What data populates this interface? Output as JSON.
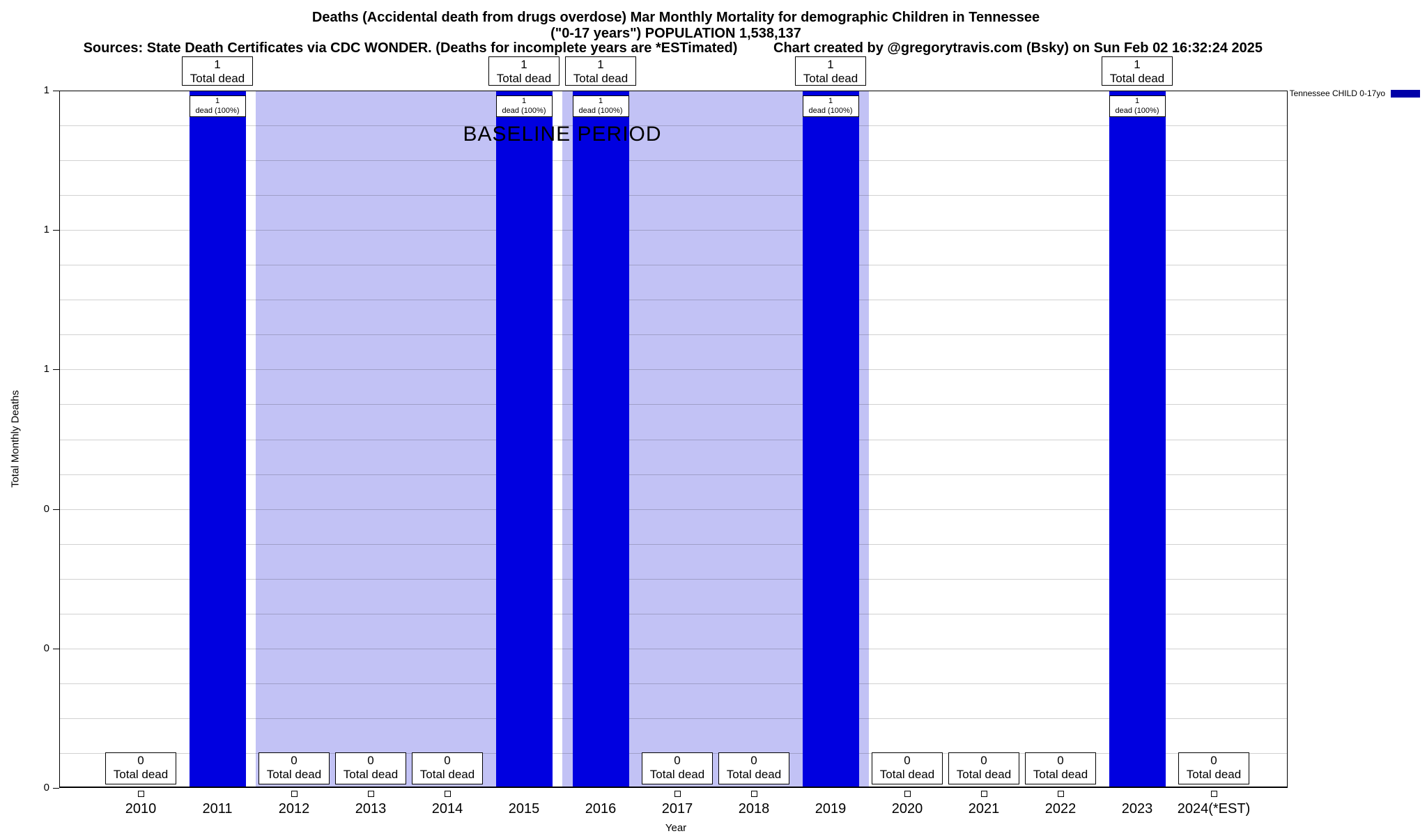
{
  "colors": {
    "bar": "#0000e0",
    "baseline_fill": "#c2c2f5",
    "legend_swatch": "#0000a8",
    "grid": "rgba(0,0,0,0.18)"
  },
  "chart_data": {
    "type": "bar",
    "title": "Deaths (Accidental death from drugs overdose) Mar Monthly Mortality for demographic Children in Tennessee",
    "subtitle": "(\"0-17 years\") POPULATION 1,538,137",
    "source_note": "Sources: State Death Certificates via CDC WONDER. (Deaths for incomplete years are *ESTimated)",
    "credit": "Chart created by @gregorytravis.com (Bsky) on Sun Feb 02 16:32:24 2025",
    "xlabel": "Year",
    "ylabel": "Total Monthly Deaths",
    "ylim": [
      0,
      1
    ],
    "ytick_labels": [
      "1",
      "1",
      "1",
      "0",
      "0",
      "0"
    ],
    "grid": true,
    "legend": {
      "label": "Tennessee CHILD 0-17yo",
      "position": "top-right"
    },
    "baseline": {
      "label": "BASELINE PERIOD",
      "from": "2012",
      "to": "2019"
    },
    "categories": [
      "2010",
      "2011",
      "2012",
      "2013",
      "2014",
      "2015",
      "2016",
      "2017",
      "2018",
      "2019",
      "2020",
      "2021",
      "2022",
      "2023",
      "2024(*EST)"
    ],
    "values": [
      0,
      1,
      0,
      0,
      0,
      1,
      1,
      0,
      0,
      1,
      0,
      0,
      0,
      1,
      0
    ],
    "annotations": {
      "total_dead_label": "Total dead",
      "bar_inner_suffix": "dead (100%)"
    }
  }
}
